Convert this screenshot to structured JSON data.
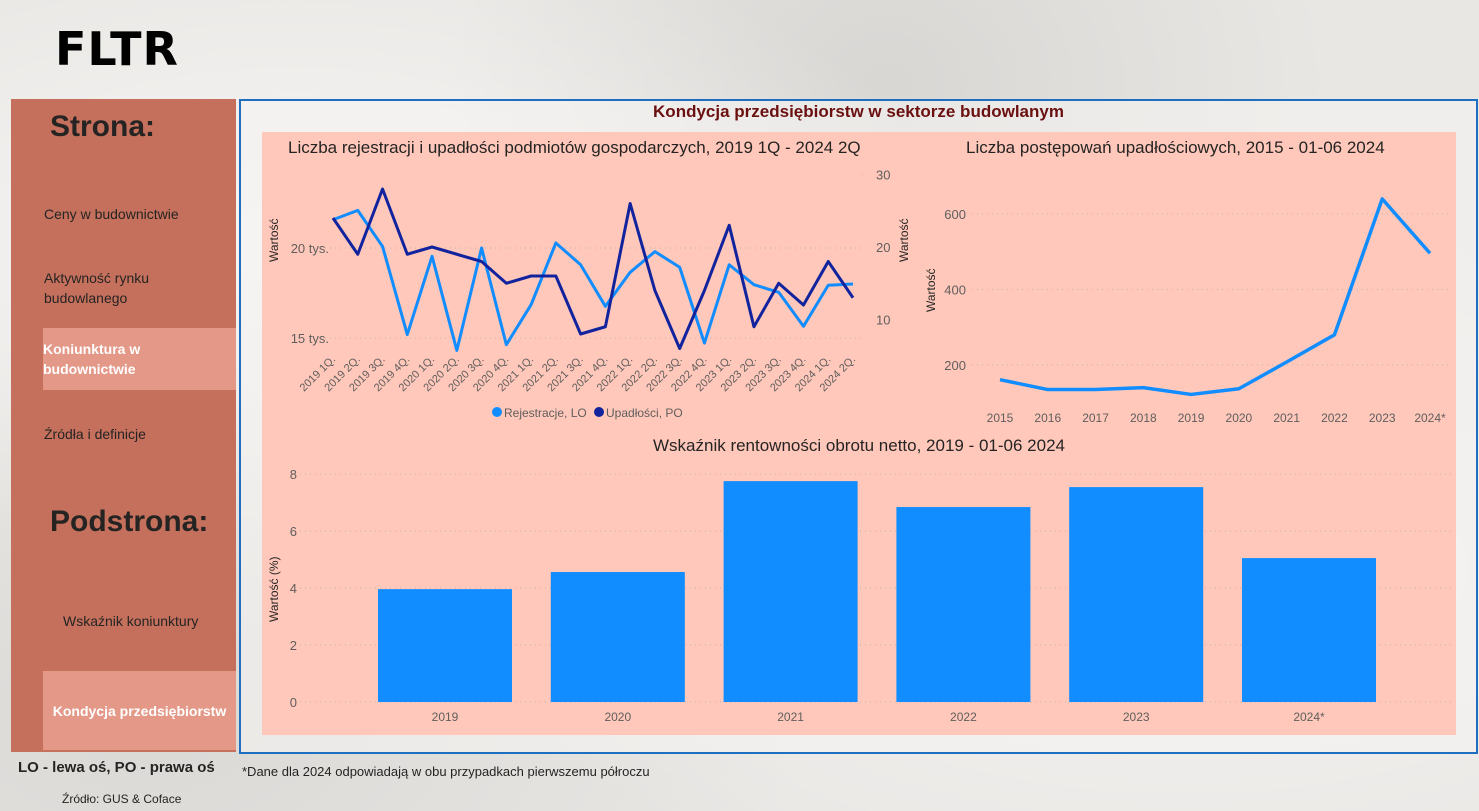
{
  "logo": "FLTR",
  "sidebar": {
    "page_heading": "Strona:",
    "pages": [
      {
        "label": "Ceny w budownictwie",
        "selected": false
      },
      {
        "label": "Aktywność rynku budowlanego",
        "selected": false
      },
      {
        "label": "Koniunktura w budownictwie",
        "selected": true
      },
      {
        "label": "Źródła i definicje",
        "selected": false
      }
    ],
    "subpage_heading": "Podstrona:",
    "subpages": [
      {
        "label": "Wskaźnik koniunktury",
        "selected": false
      },
      {
        "label": "Kondycja przedsiębiorstw",
        "selected": true
      }
    ]
  },
  "main": {
    "title": "Kondycja przedsiębiorstw w sektorze budowlanym"
  },
  "footer": {
    "axis_note": "LO - lewa oś, PO - prawa oś",
    "source": "Źródło: GUS & Coface",
    "note": "*Dane dla 2024 odpowiadają w obu przypadkach pierwszemu półroczu"
  },
  "colors": {
    "light_blue": "#118dff",
    "dark_blue": "#12239e",
    "panel": "#ffc8bb",
    "sidebar": "#c4705c",
    "sidebar_selected": "#e49888",
    "frame": "#1f6fc0"
  },
  "chart_data": [
    {
      "type": "line",
      "title": "Liczba rejestracji i upadłości podmiotów gospodarczych, 2019 1Q - 2024 2Q",
      "ylabel": "Wartość",
      "y2label": "Wartość",
      "categories": [
        "2019 1Q.",
        "2019 2Q.",
        "2019 3Q.",
        "2019 4Q.",
        "2020 1Q.",
        "2020 2Q.",
        "2020 3Q.",
        "2020 4Q.",
        "2021 1Q.",
        "2021 2Q.",
        "2021 3Q.",
        "2021 4Q.",
        "2022 1Q.",
        "2022 2Q.",
        "2022 3Q.",
        "2022 4Q.",
        "2023 1Q.",
        "2023 2Q.",
        "2023 3Q.",
        "2023 4Q.",
        "2024 1Q.",
        "2024 2Q."
      ],
      "yticks": [
        {
          "value": 15000,
          "label": "15 tys."
        },
        {
          "value": 20000,
          "label": "20 tys."
        }
      ],
      "y2ticks": [
        {
          "value": 10,
          "label": "10"
        },
        {
          "value": 20,
          "label": "20"
        },
        {
          "value": 30,
          "label": "30"
        }
      ],
      "legend": "bottom",
      "series": [
        {
          "name": "Rejestracje, LO",
          "axis": "left",
          "color": "#118dff",
          "values": [
            21570,
            22090,
            20090,
            15190,
            19540,
            14310,
            20000,
            14630,
            16850,
            20280,
            19070,
            16760,
            18650,
            19800,
            18930,
            14720,
            19070,
            17960,
            17540,
            15650,
            17930,
            18000
          ]
        },
        {
          "name": "Upadłości, PO",
          "axis": "right",
          "color": "#12239e",
          "values": [
            24,
            19,
            28,
            19,
            20,
            19,
            18,
            15,
            16,
            16,
            8,
            9,
            26,
            14,
            6,
            14,
            23,
            9,
            15,
            12,
            18,
            13
          ]
        }
      ]
    },
    {
      "type": "line",
      "title": "Liczba postępowań upadłościowych, 2015 - 01-06 2024",
      "ylabel": "Wartość",
      "categories": [
        "2015",
        "2016",
        "2017",
        "2018",
        "2019",
        "2020",
        "2021",
        "2022",
        "2023",
        "2024*"
      ],
      "yticks": [
        200,
        400,
        600
      ],
      "series": [
        {
          "color": "#118dff",
          "values": [
            161,
            135,
            135,
            140,
            122,
            137,
            208,
            280,
            640,
            496
          ]
        }
      ]
    },
    {
      "type": "bar",
      "title": "Wskaźnik rentowności obrotu netto, 2019 - 01-06 2024",
      "ylabel": "Wartość (%)",
      "categories": [
        "2019",
        "2020",
        "2021",
        "2022",
        "2023",
        "2024*"
      ],
      "yticks": [
        0,
        2,
        4,
        6,
        8
      ],
      "ylim": [
        0,
        8
      ],
      "values": [
        3.96,
        4.56,
        7.75,
        6.84,
        7.54,
        5.05
      ],
      "color": "#118dff"
    }
  ]
}
